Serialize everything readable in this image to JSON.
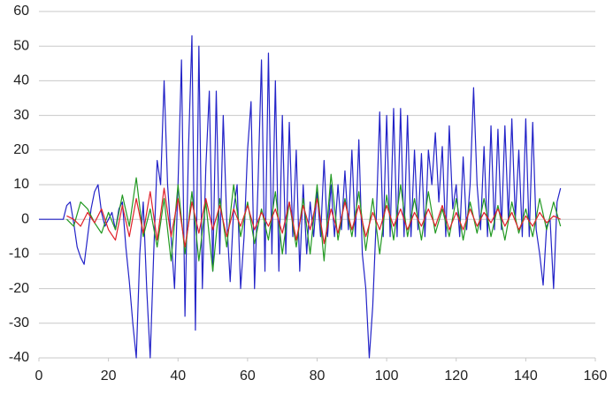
{
  "chart_data": {
    "type": "line",
    "xlim": [
      0,
      160
    ],
    "xticks": [
      0,
      20,
      40,
      60,
      80,
      100,
      120,
      140,
      160
    ],
    "ylim": [
      -40,
      60
    ],
    "yticks": [
      -40,
      -30,
      -20,
      -10,
      0,
      10,
      20,
      30,
      40,
      50,
      60
    ],
    "grid": true,
    "series": [
      {
        "color": "#2323c8",
        "x": [
          0,
          1,
          2,
          3,
          4,
          5,
          6,
          7,
          8,
          9,
          10,
          11,
          12,
          13,
          14,
          15,
          16,
          17,
          18,
          19,
          20,
          21,
          22,
          23,
          24,
          25,
          26,
          27,
          28,
          29,
          30,
          31,
          32,
          33,
          34,
          35,
          36,
          37,
          38,
          39,
          40,
          41,
          42,
          43,
          44,
          45,
          46,
          47,
          48,
          49,
          50,
          51,
          52,
          53,
          54,
          55,
          56,
          57,
          58,
          59,
          60,
          61,
          62,
          63,
          64,
          65,
          66,
          67,
          68,
          69,
          70,
          71,
          72,
          73,
          74,
          75,
          76,
          77,
          78,
          79,
          80,
          81,
          82,
          83,
          84,
          85,
          86,
          87,
          88,
          89,
          90,
          91,
          92,
          93,
          94,
          95,
          96,
          97,
          98,
          99,
          100,
          101,
          102,
          103,
          104,
          105,
          106,
          107,
          108,
          109,
          110,
          111,
          112,
          113,
          114,
          115,
          116,
          117,
          118,
          119,
          120,
          121,
          122,
          123,
          124,
          125,
          126,
          127,
          128,
          129,
          130,
          131,
          132,
          133,
          134,
          135,
          136,
          137,
          138,
          139,
          140,
          141,
          142,
          143,
          144,
          145,
          146,
          147,
          148,
          149,
          150
        ],
        "values": [
          0,
          0,
          0,
          0,
          0,
          0,
          0,
          0,
          4,
          5,
          -1,
          -8,
          -11,
          -13,
          -5,
          3,
          8,
          10,
          2,
          -2,
          0,
          2,
          -3,
          3,
          5,
          -8,
          -18,
          -30,
          -40,
          -10,
          5,
          -20,
          -40,
          -10,
          17,
          10,
          40,
          10,
          -5,
          -20,
          10,
          46,
          -28,
          20,
          53,
          -32,
          50,
          -20,
          15,
          37,
          -15,
          37,
          -10,
          30,
          0,
          -18,
          3,
          10,
          -20,
          -5,
          20,
          34,
          -20,
          10,
          46,
          -15,
          48,
          -10,
          40,
          -15,
          30,
          -10,
          28,
          -5,
          20,
          -15,
          10,
          -10,
          5,
          -5,
          8,
          -5,
          17,
          -5,
          10,
          -5,
          10,
          -3,
          14,
          -3,
          20,
          -5,
          23,
          -10,
          -20,
          -40,
          -25,
          0,
          31,
          -5,
          30,
          -5,
          32,
          -5,
          32,
          -5,
          30,
          -5,
          20,
          -3,
          19,
          -5,
          20,
          10,
          25,
          5,
          21,
          -5,
          27,
          3,
          10,
          -5,
          18,
          -3,
          10,
          38,
          10,
          -3,
          21,
          -5,
          27,
          -3,
          26,
          -3,
          27,
          0,
          29,
          0,
          20,
          -5,
          29,
          -5,
          28,
          -3,
          -10,
          -19,
          -2,
          0,
          -20,
          5,
          9
        ]
      },
      {
        "color": "#229922",
        "x": [
          8,
          10,
          12,
          14,
          16,
          18,
          20,
          22,
          24,
          26,
          28,
          30,
          32,
          34,
          36,
          38,
          40,
          42,
          44,
          46,
          48,
          50,
          52,
          54,
          56,
          58,
          60,
          62,
          64,
          66,
          68,
          70,
          72,
          74,
          76,
          78,
          80,
          82,
          84,
          86,
          88,
          90,
          92,
          94,
          96,
          98,
          100,
          102,
          104,
          106,
          108,
          110,
          112,
          114,
          116,
          118,
          120,
          122,
          124,
          126,
          128,
          130,
          132,
          134,
          136,
          138,
          140,
          142,
          144,
          146,
          148,
          150
        ],
        "values": [
          0,
          -2,
          5,
          3,
          -1,
          -4,
          2,
          -3,
          7,
          -2,
          12,
          -5,
          3,
          -8,
          6,
          -12,
          10,
          -10,
          8,
          -12,
          5,
          -15,
          6,
          -8,
          10,
          -5,
          5,
          -7,
          3,
          -6,
          8,
          -10,
          5,
          -8,
          6,
          -10,
          10,
          -12,
          13,
          -6,
          6,
          -5,
          8,
          -9,
          6,
          -10,
          7,
          -6,
          10,
          -5,
          6,
          -6,
          8,
          -4,
          3,
          -5,
          6,
          -6,
          5,
          -4,
          6,
          -5,
          4,
          -6,
          5,
          -4,
          3,
          -5,
          6,
          -3,
          5,
          -2
        ]
      },
      {
        "color": "#e0202a",
        "x": [
          8,
          10,
          12,
          14,
          16,
          18,
          20,
          22,
          24,
          26,
          28,
          30,
          32,
          34,
          36,
          38,
          40,
          42,
          44,
          46,
          48,
          50,
          52,
          54,
          56,
          58,
          60,
          62,
          64,
          66,
          68,
          70,
          72,
          74,
          76,
          78,
          80,
          82,
          84,
          86,
          88,
          90,
          92,
          94,
          96,
          98,
          100,
          102,
          104,
          106,
          108,
          110,
          112,
          114,
          116,
          118,
          120,
          122,
          124,
          126,
          128,
          130,
          132,
          134,
          136,
          138,
          140,
          142,
          144,
          146,
          148,
          150
        ],
        "values": [
          1,
          0,
          -2,
          2,
          -1,
          3,
          -3,
          -6,
          4,
          -5,
          6,
          -4,
          8,
          -6,
          9,
          -5,
          6,
          -8,
          5,
          -4,
          6,
          -3,
          4,
          -5,
          3,
          -2,
          4,
          -3,
          2,
          -2,
          3,
          -4,
          5,
          -6,
          4,
          -3,
          6,
          -7,
          3,
          -4,
          5,
          -3,
          4,
          -5,
          2,
          -3,
          4,
          -2,
          3,
          -3,
          2,
          -2,
          3,
          -2,
          4,
          -3,
          2,
          -3,
          3,
          -2,
          2,
          -1,
          3,
          -2,
          2,
          -3,
          1,
          -2,
          2,
          -1,
          1,
          0
        ]
      }
    ]
  }
}
